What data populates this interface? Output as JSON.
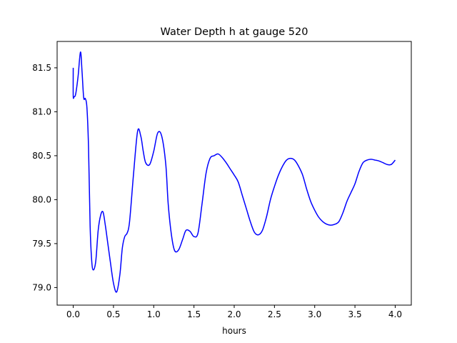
{
  "chart_data": {
    "type": "line",
    "title": "Water Depth h at gauge 520",
    "xlabel": "hours",
    "ylabel": "",
    "xlim": [
      -0.2,
      4.2
    ],
    "ylim": [
      78.8,
      81.8
    ],
    "x_ticks": [
      {
        "value": 0.0,
        "label": "0.0"
      },
      {
        "value": 0.5,
        "label": "0.5"
      },
      {
        "value": 1.0,
        "label": "1.0"
      },
      {
        "value": 1.5,
        "label": "1.5"
      },
      {
        "value": 2.0,
        "label": "2.0"
      },
      {
        "value": 2.5,
        "label": "2.5"
      },
      {
        "value": 3.0,
        "label": "3.0"
      },
      {
        "value": 3.5,
        "label": "3.5"
      },
      {
        "value": 4.0,
        "label": "4.0"
      }
    ],
    "y_ticks": [
      {
        "value": 79.0,
        "label": "79.0"
      },
      {
        "value": 79.5,
        "label": "79.5"
      },
      {
        "value": 80.0,
        "label": "80.0"
      },
      {
        "value": 80.5,
        "label": "80.5"
      },
      {
        "value": 81.0,
        "label": "81.0"
      },
      {
        "value": 81.5,
        "label": "81.5"
      }
    ],
    "grid": false,
    "legend": "none",
    "series": [
      {
        "color": "#0000ff",
        "x": [
          0.0,
          0.0,
          0.01,
          0.03,
          0.06,
          0.09,
          0.11,
          0.13,
          0.15,
          0.17,
          0.19,
          0.21,
          0.23,
          0.25,
          0.28,
          0.31,
          0.34,
          0.37,
          0.4,
          0.43,
          0.46,
          0.5,
          0.54,
          0.58,
          0.61,
          0.64,
          0.67,
          0.7,
          0.75,
          0.8,
          0.84,
          0.87,
          0.9,
          0.95,
          1.0,
          1.05,
          1.1,
          1.15,
          1.18,
          1.22,
          1.26,
          1.31,
          1.36,
          1.4,
          1.45,
          1.5,
          1.55,
          1.6,
          1.65,
          1.7,
          1.75,
          1.8,
          1.85,
          1.9,
          1.95,
          2.0,
          2.05,
          2.1,
          2.15,
          2.2,
          2.25,
          2.3,
          2.35,
          2.4,
          2.45,
          2.5,
          2.55,
          2.6,
          2.65,
          2.7,
          2.75,
          2.8,
          2.85,
          2.9,
          2.95,
          3.0,
          3.05,
          3.1,
          3.15,
          3.2,
          3.25,
          3.3,
          3.35,
          3.4,
          3.45,
          3.5,
          3.55,
          3.6,
          3.65,
          3.7,
          3.75,
          3.8,
          3.85,
          3.9,
          3.95,
          4.0
        ],
        "y": [
          81.5,
          81.18,
          81.17,
          81.2,
          81.4,
          81.68,
          81.45,
          81.16,
          81.15,
          81.05,
          80.6,
          79.7,
          79.3,
          79.2,
          79.3,
          79.65,
          79.82,
          79.86,
          79.7,
          79.5,
          79.3,
          79.05,
          78.95,
          79.15,
          79.45,
          79.58,
          79.62,
          79.75,
          80.3,
          80.78,
          80.72,
          80.55,
          80.42,
          80.4,
          80.55,
          80.76,
          80.72,
          80.4,
          79.95,
          79.6,
          79.42,
          79.43,
          79.55,
          79.65,
          79.64,
          79.58,
          79.62,
          79.95,
          80.3,
          80.47,
          80.5,
          80.52,
          80.48,
          80.42,
          80.35,
          80.28,
          80.2,
          80.05,
          79.9,
          79.75,
          79.63,
          79.6,
          79.65,
          79.8,
          80.0,
          80.15,
          80.28,
          80.38,
          80.45,
          80.47,
          80.45,
          80.38,
          80.28,
          80.12,
          79.98,
          79.88,
          79.8,
          79.75,
          79.72,
          79.71,
          79.72,
          79.75,
          79.85,
          79.98,
          80.08,
          80.18,
          80.32,
          80.42,
          80.45,
          80.46,
          80.45,
          80.44,
          80.42,
          80.4,
          80.4,
          80.45
        ]
      }
    ]
  }
}
